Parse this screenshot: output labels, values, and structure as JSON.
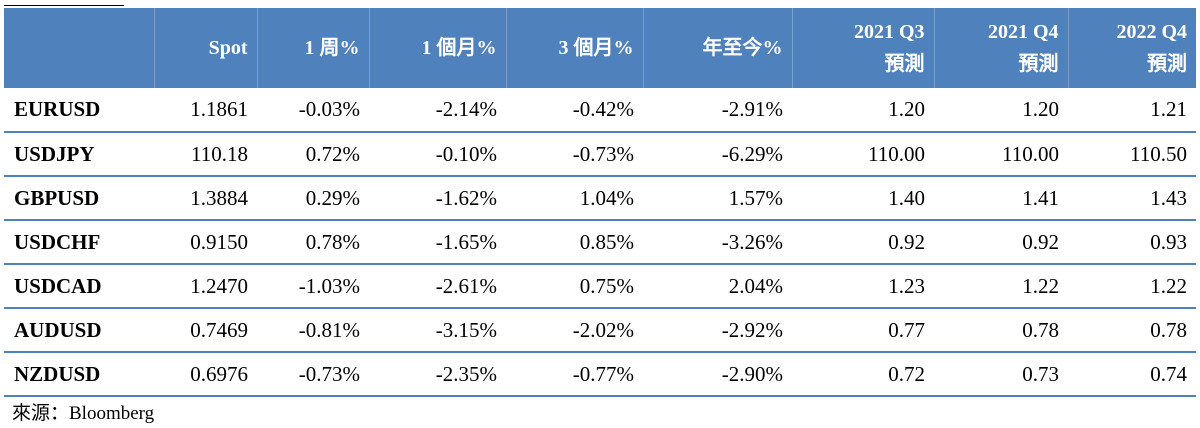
{
  "table": {
    "headers": [
      {
        "lines": [
          ""
        ]
      },
      {
        "lines": [
          "Spot"
        ]
      },
      {
        "lines": [
          "1 周%"
        ]
      },
      {
        "lines": [
          "1 個月%"
        ]
      },
      {
        "lines": [
          "3 個月%"
        ]
      },
      {
        "lines": [
          "年至今%"
        ]
      },
      {
        "lines": [
          "2021 Q3",
          "預測"
        ]
      },
      {
        "lines": [
          "2021 Q4",
          "預測"
        ]
      },
      {
        "lines": [
          "2022 Q4",
          "預測"
        ]
      }
    ],
    "rows": [
      [
        "EURUSD",
        "1.1861",
        "-0.03%",
        "-2.14%",
        "-0.42%",
        "-2.91%",
        "1.20",
        "1.20",
        "1.21"
      ],
      [
        "USDJPY",
        "110.18",
        "0.72%",
        "-0.10%",
        "-0.73%",
        "-6.29%",
        "110.00",
        "110.00",
        "110.50"
      ],
      [
        "GBPUSD",
        "1.3884",
        "0.29%",
        "-1.62%",
        "1.04%",
        "1.57%",
        "1.40",
        "1.41",
        "1.43"
      ],
      [
        "USDCHF",
        "0.9150",
        "0.78%",
        "-1.65%",
        "0.85%",
        "-3.26%",
        "0.92",
        "0.92",
        "0.93"
      ],
      [
        "USDCAD",
        "1.2470",
        "-1.03%",
        "-2.61%",
        "0.75%",
        "2.04%",
        "1.23",
        "1.22",
        "1.22"
      ],
      [
        "AUDUSD",
        "0.7469",
        "-0.81%",
        "-3.15%",
        "-2.02%",
        "-2.92%",
        "0.77",
        "0.78",
        "0.78"
      ],
      [
        "NZDUSD",
        "0.6976",
        "-0.73%",
        "-2.35%",
        "-0.77%",
        "-2.90%",
        "0.72",
        "0.73",
        "0.74"
      ]
    ]
  },
  "source": "來源：Bloomberg",
  "colors": {
    "header_bg": "#4f81bd",
    "row_rule": "#4f81bd",
    "header_text": "#ffffff"
  }
}
